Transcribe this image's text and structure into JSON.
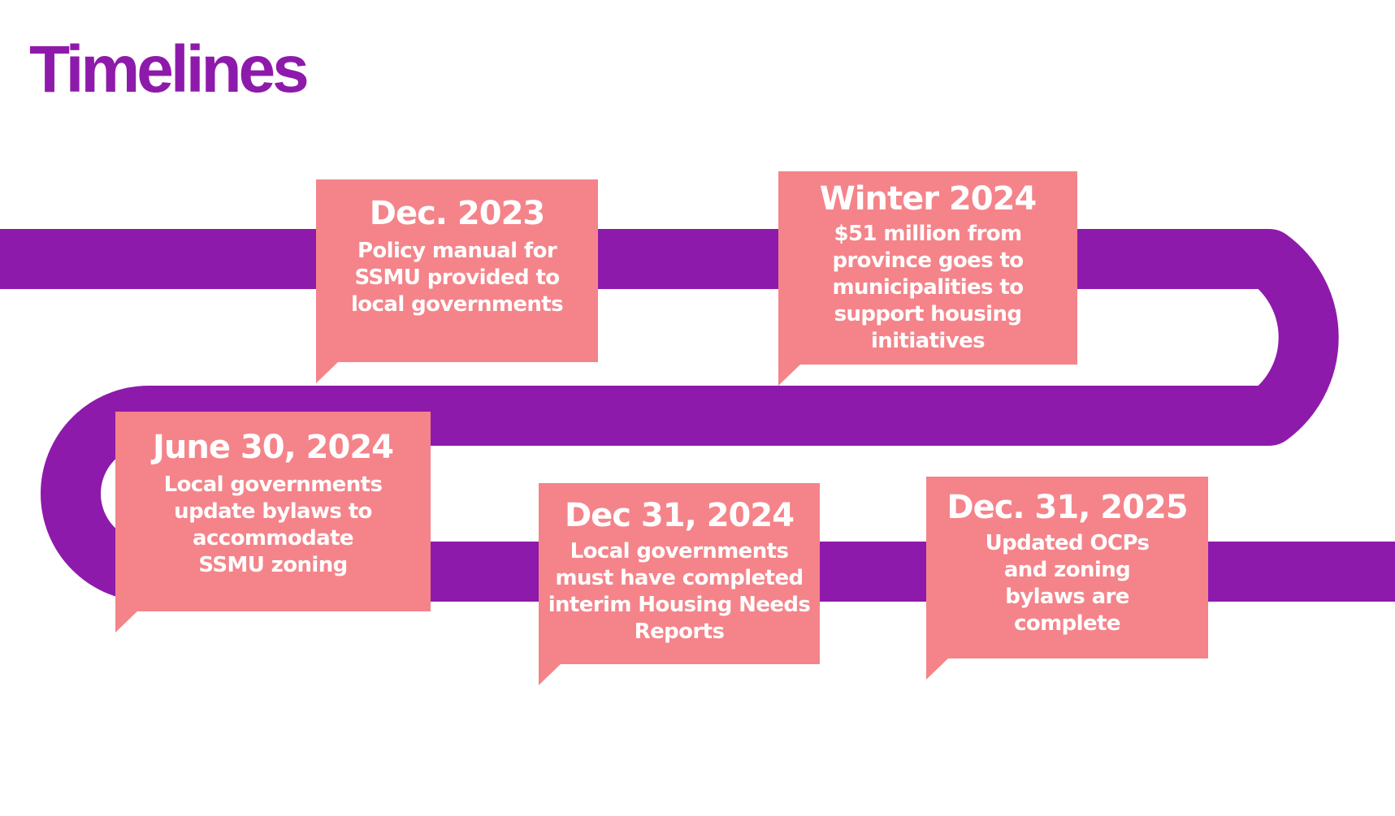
{
  "title": "Timelines",
  "colors": {
    "track": "#8e1aab",
    "callout": "#f4848a",
    "title": "#8e1aab",
    "text": "#ffffff"
  },
  "events": [
    {
      "date": "Dec. 2023",
      "description": "Policy manual for SSMU provided to local governments"
    },
    {
      "date": "Winter 2024",
      "description": "$51 million from province goes to municipalities to support housing initiatives"
    },
    {
      "date": "June 30, 2024",
      "description": "Local governments update bylaws to accommodate SSMU zoning"
    },
    {
      "date": "Dec 31, 2024",
      "description": "Local governments must have completed interim Housing Needs Reports"
    },
    {
      "date": "Dec. 31, 2025",
      "description": "Updated OCPs and zoning bylaws are complete"
    }
  ]
}
